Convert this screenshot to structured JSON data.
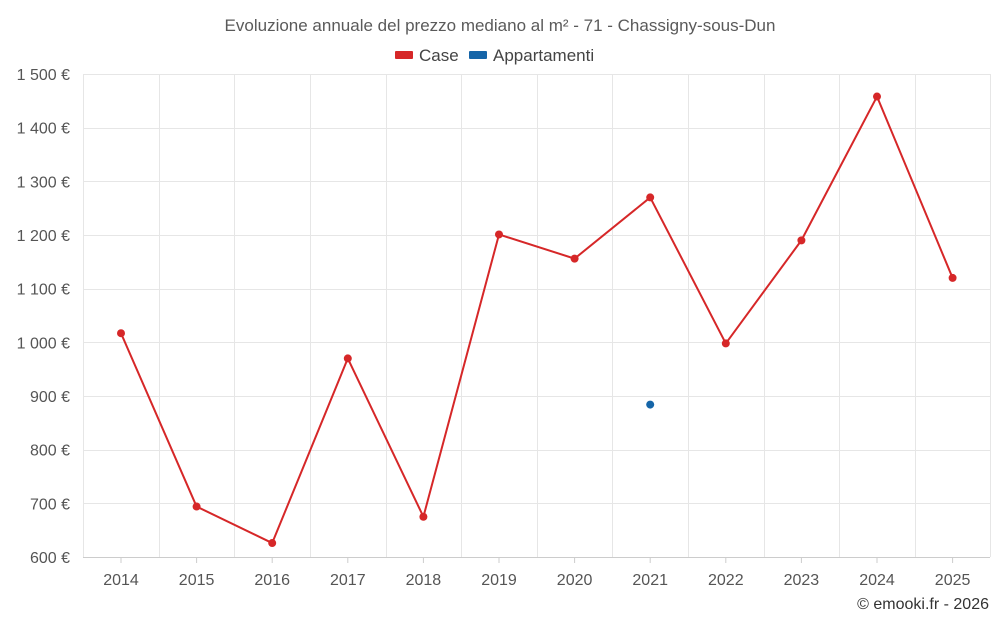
{
  "chart_data": {
    "type": "line",
    "title": "Evoluzione annuale del prezzo mediano al m² - 71 - Chassigny-sous-Dun",
    "categories": [
      "2014",
      "2015",
      "2016",
      "2017",
      "2018",
      "2019",
      "2020",
      "2021",
      "2022",
      "2023",
      "2024",
      "2025"
    ],
    "series": [
      {
        "name": "Case",
        "color": "#d62728",
        "values": [
          1017,
          694,
          626,
          970,
          675,
          1201,
          1156,
          1270,
          998,
          1190,
          1458,
          1120
        ]
      },
      {
        "name": "Appartamenti",
        "color": "#1565a8",
        "values": [
          null,
          null,
          null,
          null,
          null,
          null,
          null,
          884,
          null,
          null,
          null,
          null
        ]
      }
    ],
    "ylim": [
      600,
      1500
    ],
    "yticks": [
      600,
      700,
      800,
      900,
      1000,
      1100,
      1200,
      1300,
      1400,
      1500
    ],
    "ytick_labels": [
      "600 €",
      "700 €",
      "800 €",
      "900 €",
      "1 000 €",
      "1 100 €",
      "1 200 €",
      "1 300 €",
      "1 400 €",
      "1 500 €"
    ],
    "xlabel": "",
    "ylabel": "",
    "grid": true,
    "legend_position": "top-center"
  },
  "credit": "© emooki.fr - 2026"
}
